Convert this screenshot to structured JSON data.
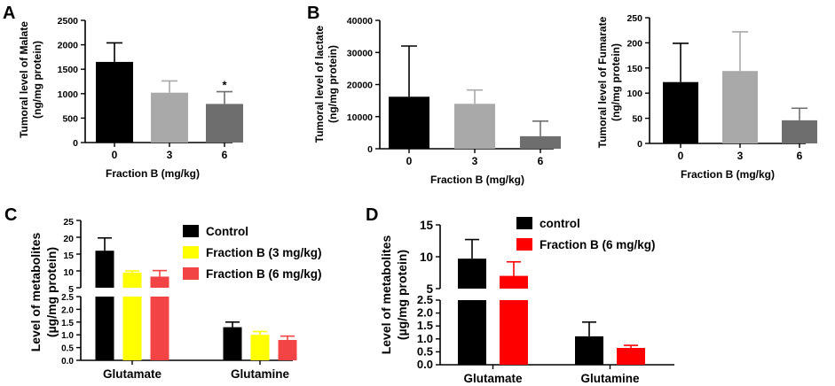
{
  "panels": {
    "A": "A",
    "B": "B",
    "C": "C",
    "D": "D"
  },
  "chart_data": [
    {
      "id": "A",
      "type": "bar",
      "categories": [
        "0",
        "3",
        "6"
      ],
      "values": [
        1650,
        1020,
        790
      ],
      "errors": [
        390,
        240,
        250
      ],
      "colors": [
        "#000000",
        "#a9a9a9",
        "#6e6e6e"
      ],
      "ylim": [
        0,
        2500
      ],
      "yticks": [
        "0",
        "500",
        "1000",
        "1500",
        "2000",
        "2500"
      ],
      "ylabel": [
        "Tumoral level of Malate",
        "(ng/mg protein)"
      ],
      "xlabel": "Fraction B (mg/kg)",
      "annotations": [
        "",
        "",
        "*"
      ]
    },
    {
      "id": "B1",
      "type": "bar",
      "categories": [
        "0",
        "3",
        "6"
      ],
      "values": [
        16200,
        14000,
        3900
      ],
      "errors": [
        15800,
        4300,
        4700
      ],
      "colors": [
        "#000000",
        "#a9a9a9",
        "#6e6e6e"
      ],
      "ylim": [
        0,
        40000
      ],
      "yticks": [
        "0",
        "10000",
        "20000",
        "30000",
        "40000"
      ],
      "ylabel": [
        "Tumoral level of lactate",
        "(ng/mg protein)"
      ],
      "xlabel": "Fraction B (mg/kg)"
    },
    {
      "id": "B2",
      "type": "bar",
      "categories": [
        "0",
        "3",
        "6"
      ],
      "values": [
        122,
        144,
        46
      ],
      "errors": [
        77,
        78,
        24
      ],
      "colors": [
        "#000000",
        "#a9a9a9",
        "#6e6e6e"
      ],
      "ylim": [
        0,
        250
      ],
      "yticks": [
        "0",
        "50",
        "100",
        "150",
        "200",
        "250"
      ],
      "ylabel": [
        "Tumoral level of Fumarate",
        "(ng/mg protein)"
      ],
      "xlabel": "Fraction B (mg/kg)"
    },
    {
      "id": "C",
      "type": "bar",
      "categories": [
        "Glutamate",
        "Glutamine"
      ],
      "series": [
        {
          "name": "Control",
          "color": "#000000",
          "values": [
            16,
            1.3
          ],
          "errors": [
            3.8,
            0.2
          ]
        },
        {
          "name": "Fraction B (3 mg/kg)",
          "color": "#ffff00",
          "values": [
            9.5,
            1.0
          ],
          "errors": [
            0.5,
            0.13
          ]
        },
        {
          "name": "Fraction B (6 mg/kg)",
          "color": "#f24444",
          "values": [
            8.3,
            0.8
          ],
          "errors": [
            1.8,
            0.15
          ]
        }
      ],
      "ylim_lower": [
        0,
        2.5
      ],
      "ylim_upper": [
        5,
        25
      ],
      "yticks_lower": [
        "0.0",
        "0.5",
        "1.0",
        "1.5",
        "2.0",
        "2.5"
      ],
      "yticks_upper": [
        "5",
        "10",
        "15",
        "20",
        "25"
      ],
      "ylabel": [
        "Level of metabolites",
        "(µg/mg protein)"
      ],
      "axis_break": true
    },
    {
      "id": "D",
      "type": "bar",
      "categories": [
        "Glutamate",
        "Glutamine"
      ],
      "series": [
        {
          "name": "control",
          "color": "#000000",
          "values": [
            9.7,
            1.1
          ],
          "errors": [
            3.0,
            0.55
          ]
        },
        {
          "name": "Fraction B (6 mg/kg)",
          "color": "#ff0000",
          "values": [
            7.0,
            0.65
          ],
          "errors": [
            2.2,
            0.1
          ]
        }
      ],
      "ylim_lower": [
        0,
        2.5
      ],
      "ylim_upper": [
        5,
        15
      ],
      "yticks_lower": [
        "0.0",
        "0.5",
        "1.0",
        "1.5",
        "2.0",
        "2.5"
      ],
      "yticks_upper": [
        "5",
        "10",
        "15"
      ],
      "ylabel": [
        "Level of metabolites",
        "(µg/mg protein)"
      ],
      "axis_break": true
    }
  ]
}
